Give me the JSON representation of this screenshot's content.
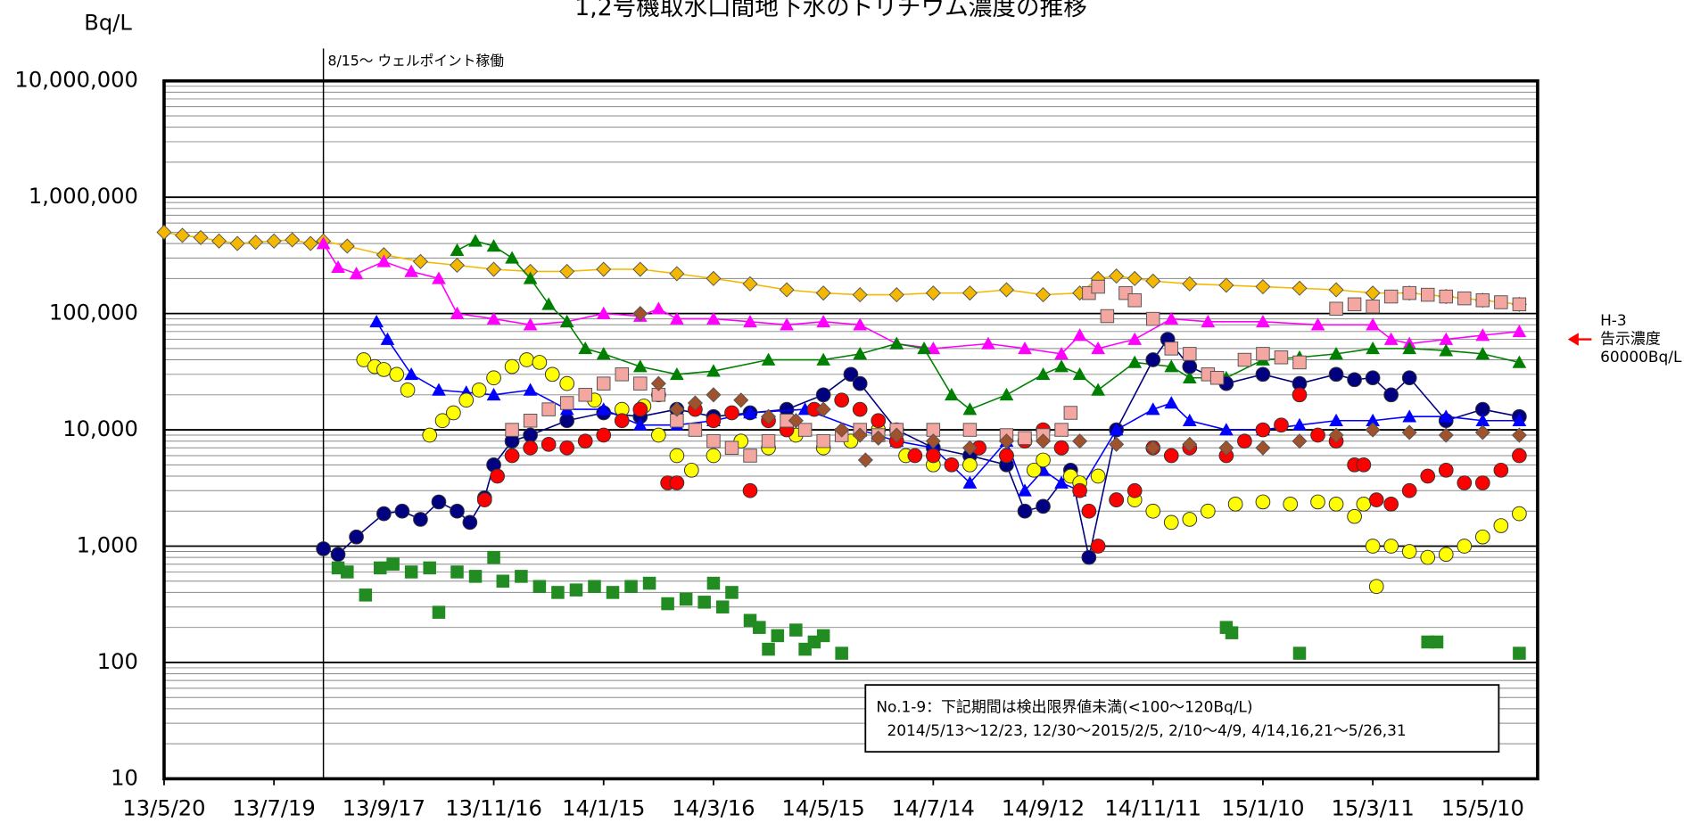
{
  "chart_data": {
    "type": "scatter",
    "title": "1,2号機取水口間地下水のトリチウム濃度の推移",
    "y_label": "Bq/L",
    "log_y": true,
    "grid": true,
    "minor_grid": true,
    "xlim": [
      0,
      750
    ],
    "ylim": [
      10,
      10000000
    ],
    "xticks": [
      {
        "value": 0,
        "label": "13/5/20"
      },
      {
        "value": 60,
        "label": "13/7/19"
      },
      {
        "value": 120,
        "label": "13/9/17"
      },
      {
        "value": 180,
        "label": "13/11/16"
      },
      {
        "value": 240,
        "label": "14/1/15"
      },
      {
        "value": 300,
        "label": "14/3/16"
      },
      {
        "value": 360,
        "label": "14/5/15"
      },
      {
        "value": 420,
        "label": "14/7/14"
      },
      {
        "value": 480,
        "label": "14/9/12"
      },
      {
        "value": 540,
        "label": "14/11/11"
      },
      {
        "value": 600,
        "label": "15/1/10"
      },
      {
        "value": 660,
        "label": "15/3/11"
      },
      {
        "value": 720,
        "label": "15/5/10"
      }
    ],
    "yticks": [
      10,
      100,
      {
        "value": 1000,
        "label": "1,000"
      },
      {
        "value": 10000,
        "label": "10,000"
      },
      {
        "value": 100000,
        "label": "100,000"
      },
      {
        "value": 1000000,
        "label": "1,000,000"
      },
      {
        "value": 10000000,
        "label": "10,000,000"
      }
    ],
    "vline": {
      "x": 87,
      "label": "8/15～ ウェルポイント稼働"
    },
    "reference": {
      "value": 60000,
      "color": "#ff0000",
      "label": [
        "H-3",
        "告示濃度",
        "60000Bq/L"
      ]
    },
    "note": [
      "No.1-9：下記期間は検出限界値未満(<100～120Bq/L)",
      "2014/5/13～12/23, 12/30～2015/2/5, 2/10～4/9, 4/14,16,21～5/26,31"
    ],
    "series": [
      {
        "color": "#f5b800",
        "marker": "diamond",
        "connect": true,
        "x": [
          0,
          10,
          20,
          30,
          40,
          50,
          60,
          70,
          80,
          87,
          100,
          120,
          140,
          160,
          180,
          200,
          220,
          240,
          260,
          280,
          300,
          320,
          340,
          360,
          380,
          400,
          420,
          440,
          460,
          480,
          500,
          510,
          520,
          530,
          540,
          560,
          580,
          600,
          620,
          640,
          660,
          680,
          700,
          720,
          740
        ],
        "values": [
          500000,
          470000,
          450000,
          420000,
          400000,
          410000,
          420000,
          430000,
          400000,
          420000,
          380000,
          320000,
          280000,
          260000,
          240000,
          230000,
          230000,
          240000,
          240000,
          220000,
          200000,
          180000,
          160000,
          150000,
          145000,
          145000,
          150000,
          150000,
          160000,
          145000,
          150000,
          200000,
          210000,
          200000,
          190000,
          180000,
          175000,
          170000,
          165000,
          160000,
          150000,
          150000,
          140000,
          130000,
          120000
        ]
      },
      {
        "color": "#ff00ff",
        "marker": "triangle",
        "connect": true,
        "x": [
          87,
          95,
          105,
          120,
          135,
          150,
          160,
          180,
          200,
          220,
          240,
          260,
          270,
          280,
          300,
          320,
          340,
          360,
          380,
          400,
          420,
          450,
          470,
          490,
          500,
          510,
          530,
          550,
          570,
          600,
          630,
          660,
          670,
          680,
          700,
          720,
          740
        ],
        "values": [
          400000,
          250000,
          220000,
          280000,
          230000,
          200000,
          100000,
          90000,
          80000,
          85000,
          100000,
          95000,
          110000,
          90000,
          90000,
          85000,
          80000,
          85000,
          80000,
          55000,
          50000,
          55000,
          50000,
          45000,
          65000,
          50000,
          60000,
          90000,
          85000,
          85000,
          80000,
          80000,
          60000,
          55000,
          60000,
          65000,
          70000
        ]
      },
      {
        "color": "#008000",
        "marker": "triangle",
        "connect": true,
        "x": [
          160,
          170,
          180,
          190,
          200,
          210,
          220,
          230,
          240,
          260,
          280,
          300,
          330,
          360,
          380,
          400,
          415,
          430,
          440,
          460,
          480,
          490,
          500,
          510,
          530,
          550,
          560,
          580,
          600,
          620,
          640,
          660,
          680,
          700,
          720,
          740
        ],
        "values": [
          350000,
          420000,
          380000,
          300000,
          200000,
          120000,
          85000,
          50000,
          45000,
          35000,
          30000,
          32000,
          40000,
          40000,
          45000,
          55000,
          50000,
          20000,
          15000,
          20000,
          30000,
          35000,
          30000,
          22000,
          38000,
          35000,
          28000,
          28000,
          40000,
          42000,
          45000,
          50000,
          50000,
          48000,
          45000,
          38000
        ]
      },
      {
        "color": "#000080",
        "marker": "circle",
        "connect": true,
        "x": [
          87,
          95,
          105,
          120,
          130,
          140,
          150,
          160,
          167,
          175,
          180,
          190,
          200,
          220,
          240,
          260,
          280,
          300,
          320,
          340,
          360,
          375,
          380,
          400,
          420,
          440,
          460,
          470,
          480,
          495,
          505,
          520,
          540,
          548,
          560,
          580,
          600,
          620,
          640,
          650,
          660,
          670,
          680,
          700,
          720,
          740
        ],
        "values": [
          950,
          850,
          1200,
          1900,
          2000,
          1700,
          2400,
          2000,
          1600,
          2600,
          5000,
          8000,
          9000,
          12000,
          14000,
          13000,
          15000,
          13000,
          14000,
          15000,
          20000,
          30000,
          25000,
          10000,
          7000,
          6000,
          5000,
          2000,
          2200,
          4500,
          800,
          10000,
          40000,
          60000,
          35000,
          25000,
          30000,
          25000,
          30000,
          27000,
          28000,
          20000,
          28000,
          12000,
          15000,
          13000
        ]
      },
      {
        "color": "#0000ff",
        "marker": "triangle",
        "connect": true,
        "x": [
          116,
          122,
          135,
          150,
          165,
          180,
          200,
          220,
          240,
          260,
          280,
          300,
          320,
          350,
          380,
          400,
          420,
          440,
          460,
          470,
          480,
          490,
          500,
          520,
          540,
          550,
          560,
          580,
          600,
          620,
          640,
          660,
          680,
          700,
          720,
          740
        ],
        "values": [
          85000,
          60000,
          30000,
          22000,
          21000,
          20000,
          22000,
          15000,
          15000,
          11000,
          11000,
          12000,
          14000,
          15000,
          10000,
          8000,
          7000,
          3500,
          8000,
          3000,
          4500,
          3500,
          3000,
          10000,
          15000,
          17000,
          12000,
          10000,
          10000,
          11000,
          12000,
          12000,
          13000,
          13000,
          12000,
          12000
        ]
      },
      {
        "color": "#ffff00",
        "marker": "circle",
        "connect": false,
        "x": [
          109,
          115,
          120,
          127,
          133,
          145,
          152,
          158,
          165,
          172,
          180,
          190,
          198,
          205,
          212,
          220,
          235,
          250,
          262,
          270,
          280,
          288,
          300,
          315,
          330,
          345,
          360,
          375,
          390,
          405,
          420,
          440,
          460,
          475,
          480,
          490,
          495,
          500,
          510,
          520,
          530,
          540,
          550,
          560,
          570,
          585,
          600,
          615,
          630,
          640,
          650,
          655,
          660,
          662,
          670,
          680,
          690,
          700,
          710,
          720,
          730,
          740
        ],
        "values": [
          40000,
          35000,
          33000,
          30000,
          22000,
          9000,
          12000,
          14000,
          18000,
          22000,
          28000,
          35000,
          40000,
          38000,
          30000,
          25000,
          18000,
          15000,
          16000,
          9000,
          6000,
          4500,
          6000,
          8000,
          7000,
          9000,
          7000,
          8000,
          10000,
          6000,
          5000,
          5000,
          6000,
          4500,
          5500,
          7000,
          4000,
          3500,
          4000,
          2500,
          2500,
          2000,
          1600,
          1700,
          2000,
          2300,
          2400,
          2300,
          2400,
          2300,
          1800,
          2300,
          1000,
          450,
          1000,
          900,
          800,
          850,
          1000,
          1200,
          1500,
          1900
        ]
      },
      {
        "color": "#ff0000",
        "marker": "circle",
        "connect": false,
        "x": [
          175,
          182,
          190,
          200,
          210,
          220,
          230,
          240,
          250,
          260,
          270,
          275,
          280,
          290,
          300,
          310,
          320,
          330,
          340,
          355,
          370,
          380,
          390,
          400,
          410,
          420,
          430,
          445,
          460,
          470,
          480,
          490,
          500,
          505,
          510,
          520,
          530,
          540,
          550,
          560,
          580,
          590,
          600,
          610,
          620,
          630,
          640,
          650,
          655,
          662,
          670,
          680,
          690,
          700,
          710,
          720,
          730,
          740
        ],
        "values": [
          2500,
          4000,
          6000,
          7000,
          7500,
          7000,
          8000,
          9000,
          12000,
          15000,
          20000,
          3500,
          3500,
          15000,
          12000,
          14000,
          3000,
          12000,
          10000,
          15000,
          18000,
          15000,
          12000,
          8000,
          6000,
          6000,
          5000,
          7000,
          6000,
          8000,
          10000,
          7000,
          3000,
          2000,
          1000,
          2500,
          3000,
          7000,
          6000,
          7000,
          6000,
          8000,
          10000,
          11000,
          20000,
          9000,
          8000,
          5000,
          5000,
          2500,
          2300,
          3000,
          4000,
          4500,
          3500,
          3500,
          4500,
          6000
        ]
      },
      {
        "color": "#f4a6a0",
        "marker": "square",
        "connect": false,
        "x": [
          190,
          200,
          210,
          220,
          230,
          240,
          250,
          260,
          270,
          280,
          290,
          300,
          310,
          320,
          330,
          340,
          350,
          360,
          370,
          380,
          390,
          400,
          420,
          440,
          460,
          470,
          480,
          490,
          495,
          505,
          510,
          515,
          525,
          530,
          540,
          550,
          560,
          570,
          575,
          590,
          600,
          610,
          620,
          640,
          650,
          660,
          670,
          680,
          690,
          700,
          710,
          720,
          730,
          740
        ],
        "values": [
          10000,
          12000,
          15000,
          17000,
          20000,
          25000,
          30000,
          25000,
          20000,
          12000,
          10000,
          8000,
          7000,
          6000,
          8000,
          12000,
          10000,
          8000,
          9000,
          10000,
          9000,
          10000,
          10000,
          10000,
          9000,
          8500,
          9000,
          10000,
          14000,
          150000,
          170000,
          95000,
          150000,
          130000,
          90000,
          50000,
          45000,
          30000,
          28000,
          40000,
          45000,
          42000,
          38000,
          110000,
          120000,
          115000,
          140000,
          150000,
          145000,
          140000,
          135000,
          130000,
          125000,
          120000
        ]
      },
      {
        "color": "#a0522d",
        "marker": "diamond",
        "connect": false,
        "x": [
          260,
          270,
          280,
          290,
          300,
          315,
          330,
          345,
          360,
          370,
          380,
          383,
          390,
          400,
          420,
          440,
          460,
          480,
          500,
          520,
          540,
          560,
          580,
          600,
          620,
          640,
          660,
          680,
          700,
          720,
          740
        ],
        "values": [
          100000,
          25000,
          15000,
          17000,
          20000,
          18000,
          13000,
          12000,
          15000,
          10000,
          9000,
          5500,
          8500,
          9000,
          8000,
          7000,
          8000,
          8000,
          8000,
          7500,
          7000,
          7500,
          7000,
          7000,
          8000,
          9000,
          10000,
          9500,
          9000,
          9500,
          9000
        ]
      },
      {
        "color": "#228b22",
        "marker": "square",
        "connect": false,
        "x": [
          95,
          100,
          110,
          118,
          125,
          135,
          145,
          150,
          160,
          170,
          180,
          185,
          195,
          205,
          215,
          225,
          235,
          245,
          255,
          265,
          275,
          285,
          295,
          300,
          305,
          310,
          320,
          325,
          330,
          335,
          345,
          350,
          355,
          360,
          370,
          580,
          583,
          620,
          690,
          695,
          740
        ],
        "values": [
          650,
          600,
          380,
          650,
          700,
          600,
          650,
          270,
          600,
          550,
          800,
          500,
          550,
          450,
          400,
          420,
          450,
          400,
          450,
          480,
          320,
          350,
          330,
          480,
          300,
          400,
          230,
          200,
          130,
          170,
          190,
          130,
          150,
          170,
          120,
          200,
          180,
          120,
          150,
          150,
          120
        ]
      }
    ]
  }
}
